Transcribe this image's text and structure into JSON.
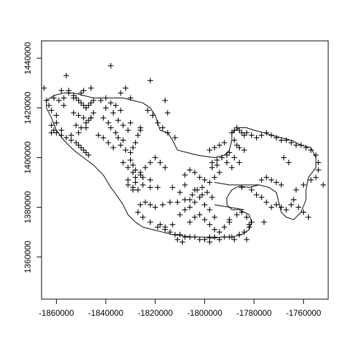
{
  "chart_data": {
    "type": "scatter",
    "title": "",
    "xlabel": "",
    "ylabel": "",
    "xlim": [
      -1866000,
      -1750000
    ],
    "ylim": [
      1343000,
      1447000
    ],
    "x_ticks": [
      -1860000,
      -1840000,
      -1820000,
      -1800000,
      -1780000,
      -1760000
    ],
    "x_tick_labels": [
      "-1860000",
      "-1840000",
      "-1820000",
      "-1800000",
      "-1780000",
      "-1760000"
    ],
    "y_ticks": [
      1360000,
      1380000,
      1400000,
      1420000,
      1440000
    ],
    "y_tick_labels": [
      "1360000",
      "1380000",
      "1400000",
      "1420000",
      "1440000"
    ],
    "marker": "plus",
    "grid": false,
    "legend": "none",
    "boundary": [
      [
        -1864000,
        1423000
      ],
      [
        -1861000,
        1425000
      ],
      [
        -1857000,
        1426000
      ],
      [
        -1853000,
        1426000
      ],
      [
        -1849000,
        1425000
      ],
      [
        -1845000,
        1424000
      ],
      [
        -1841000,
        1424000
      ],
      [
        -1837000,
        1424000
      ],
      [
        -1833000,
        1424000
      ],
      [
        -1829000,
        1423000
      ],
      [
        -1825000,
        1422000
      ],
      [
        -1822000,
        1420000
      ],
      [
        -1820000,
        1417000
      ],
      [
        -1819000,
        1414000
      ],
      [
        -1818000,
        1411000
      ],
      [
        -1815000,
        1410000
      ],
      [
        -1813000,
        1407000
      ],
      [
        -1811000,
        1403000
      ],
      [
        -1807000,
        1402000
      ],
      [
        -1803000,
        1401000
      ],
      [
        -1800000,
        1400500
      ],
      [
        -1796000,
        1400000
      ],
      [
        -1792000,
        1401000
      ],
      [
        -1790000,
        1403000
      ],
      [
        -1789000,
        1407000
      ],
      [
        -1789000,
        1410000
      ],
      [
        -1786000,
        1412000
      ],
      [
        -1783000,
        1412000
      ],
      [
        -1780000,
        1411000
      ],
      [
        -1776000,
        1410000
      ],
      [
        -1773000,
        1409000
      ],
      [
        -1769000,
        1408000
      ],
      [
        -1765000,
        1407000
      ],
      [
        -1761000,
        1405000
      ],
      [
        -1757000,
        1404000
      ],
      [
        -1755000,
        1400000
      ],
      [
        -1755000,
        1396000
      ],
      [
        -1758000,
        1392000
      ],
      [
        -1759000,
        1387000
      ],
      [
        -1759000,
        1383000
      ],
      [
        -1761000,
        1378000
      ],
      [
        -1764000,
        1375000
      ],
      [
        -1767000,
        1376000
      ],
      [
        -1769000,
        1378000
      ],
      [
        -1770000,
        1382000
      ],
      [
        -1771000,
        1386000
      ],
      [
        -1774000,
        1388000
      ],
      [
        -1778000,
        1389000
      ],
      [
        -1782000,
        1388000
      ],
      [
        -1786000,
        1388500
      ],
      [
        -1789000,
        1387000
      ],
      [
        -1791000,
        1384000
      ],
      [
        -1791000,
        1381000
      ],
      [
        -1789000,
        1379000
      ],
      [
        -1786000,
        1379000
      ],
      [
        -1784000,
        1378000
      ],
      [
        -1782000,
        1377000
      ],
      [
        -1781000,
        1374000
      ],
      [
        -1782000,
        1371000
      ],
      [
        -1785000,
        1369000
      ],
      [
        -1789000,
        1368000
      ],
      [
        -1793000,
        1368000
      ],
      [
        -1797000,
        1367500
      ],
      [
        -1801000,
        1368000
      ],
      [
        -1805000,
        1368000
      ],
      [
        -1809000,
        1368500
      ],
      [
        -1813000,
        1369000
      ],
      [
        -1817000,
        1370000
      ],
      [
        -1821000,
        1371000
      ],
      [
        -1825000,
        1372000
      ],
      [
        -1828000,
        1374000
      ],
      [
        -1831000,
        1377000
      ],
      [
        -1833000,
        1381000
      ],
      [
        -1835000,
        1384000
      ],
      [
        -1838000,
        1388000
      ],
      [
        -1841000,
        1393000
      ],
      [
        -1845000,
        1397000
      ],
      [
        -1849000,
        1400000
      ],
      [
        -1853000,
        1403000
      ],
      [
        -1857000,
        1407000
      ],
      [
        -1860000,
        1411000
      ],
      [
        -1862000,
        1416000
      ],
      [
        -1864000,
        1420000
      ],
      [
        -1864000,
        1423000
      ]
    ],
    "inner_lines": [
      [
        [
          -1796000,
          1390000
        ],
        [
          -1790000,
          1389000
        ],
        [
          -1784000,
          1389000
        ],
        [
          -1778000,
          1389000
        ]
      ],
      [
        [
          -1796000,
          1381000
        ],
        [
          -1790000,
          1380000
        ],
        [
          -1784000,
          1379000
        ]
      ]
    ],
    "series": [
      {
        "x": [
          -1865000,
          -1861000,
          -1859000,
          -1857000,
          -1856000,
          -1858000,
          -1855000,
          -1853000,
          -1852000,
          -1851000,
          -1850000,
          -1849000,
          -1848000,
          -1847000,
          -1846000,
          -1845000,
          -1853000,
          -1851000,
          -1849000,
          -1847000,
          -1852000,
          -1850000,
          -1848000,
          -1846000,
          -1845000,
          -1860000,
          -1861000,
          -1862000,
          -1860000,
          -1858000,
          -1856000,
          -1854000,
          -1852000,
          -1851000,
          -1850000,
          -1849000,
          -1848000,
          -1847000,
          -1855000,
          -1849000,
          -1846000,
          -1838000,
          -1837000,
          -1840000,
          -1841000,
          -1839000,
          -1838000,
          -1836000,
          -1835000,
          -1833000,
          -1834000,
          -1836000,
          -1838000,
          -1840000,
          -1842000,
          -1841000,
          -1839000,
          -1837000,
          -1834000,
          -1832000,
          -1830000,
          -1829000,
          -1828000,
          -1827000,
          -1826000,
          -1830000,
          -1831000,
          -1833000,
          -1835000,
          -1830000,
          -1829000,
          -1828000,
          -1826000,
          -1825000,
          -1828000,
          -1829000,
          -1827000,
          -1825000,
          -1822000,
          -1822000,
          -1826000,
          -1823000,
          -1821000,
          -1819000,
          -1817000,
          -1815000,
          -1812000,
          -1830000,
          -1832000,
          -1834000,
          -1833000,
          -1831000,
          -1829000,
          -1831000,
          -1828000,
          -1826000,
          -1824000,
          -1822000,
          -1820000,
          -1818000,
          -1816000,
          -1816000,
          -1815000,
          -1826000,
          -1824000,
          -1822000,
          -1820000,
          -1817000,
          -1814000,
          -1827000,
          -1825000,
          -1822000,
          -1819000,
          -1816000,
          -1814000,
          -1812000,
          -1810000,
          -1808000,
          -1806000,
          -1804000,
          -1802000,
          -1800000,
          -1798000,
          -1796000,
          -1794000,
          -1792000,
          -1790000,
          -1788000,
          -1786000,
          -1784000,
          -1782000,
          -1781000,
          -1783000,
          -1785000,
          -1787000,
          -1790000,
          -1808000,
          -1805000,
          -1803000,
          -1801000,
          -1799000,
          -1797000,
          -1808000,
          -1806000,
          -1804000,
          -1802000,
          -1800000,
          -1798000,
          -1796000,
          -1794000,
          -1810000,
          -1808000,
          -1806000,
          -1804000,
          -1802000,
          -1800000,
          -1798000,
          -1806000,
          -1804000,
          -1802000,
          -1800000,
          -1798000,
          -1796000,
          -1794000,
          -1792000,
          -1790000,
          -1797000,
          -1795000,
          -1793000,
          -1791000,
          -1789000,
          -1798000,
          -1796000,
          -1794000,
          -1792000,
          -1790000,
          -1788000,
          -1786000,
          -1797000,
          -1795000,
          -1789000,
          -1788000,
          -1787000,
          -1786000,
          -1785000,
          -1784000,
          -1783000,
          -1781000,
          -1779000,
          -1777000,
          -1775000,
          -1773000,
          -1771000,
          -1769000,
          -1767000,
          -1765000,
          -1763000,
          -1761000,
          -1759000,
          -1757000,
          -1755000,
          -1754000,
          -1754000,
          -1755000,
          -1752000,
          -1757000,
          -1760000,
          -1763000,
          -1764000,
          -1762000,
          -1760000,
          -1758000,
          -1773000,
          -1771000,
          -1769000,
          -1775000,
          -1777000,
          -1768000,
          -1766000,
          -1787000,
          -1786000,
          -1784000,
          -1788000,
          -1791000,
          -1813000,
          -1810000,
          -1806000,
          -1796000,
          -1782000,
          -1776000,
          -1811000,
          -1819000,
          -1822000,
          -1831000,
          -1829000,
          -1850000,
          -1853000,
          -1857000,
          -1860000,
          -1862000,
          -1863000,
          -1864000,
          -1862000,
          -1858000,
          -1854000,
          -1851000,
          -1848000,
          -1846000,
          -1843000,
          -1808000,
          -1804000,
          -1801000,
          -1813000,
          -1816000,
          -1818000,
          -1809000,
          -1811000,
          -1798000,
          -1783000,
          -1789000,
          -1785000,
          -1781000,
          -1779000,
          -1777000,
          -1775000,
          -1773000,
          -1771000,
          -1769000,
          -1767000,
          -1765000
        ],
        "y": [
          1428000,
          1424000,
          1423000,
          1424000,
          1433000,
          1427000,
          1426000,
          1425000,
          1424000,
          1423000,
          1422000,
          1421000,
          1420000,
          1421000,
          1422000,
          1423000,
          1418000,
          1417000,
          1416000,
          1415000,
          1413000,
          1412000,
          1414000,
          1416000,
          1418000,
          1414000,
          1411000,
          1413000,
          1410000,
          1409000,
          1408000,
          1407000,
          1406000,
          1405000,
          1404000,
          1403000,
          1402000,
          1401000,
          1427000,
          1427000,
          1428000,
          1437000,
          1418000,
          1420000,
          1416000,
          1414000,
          1412000,
          1410000,
          1408000,
          1407000,
          1419000,
          1421000,
          1422000,
          1424000,
          1423000,
          1408000,
          1406000,
          1404000,
          1405000,
          1403000,
          1402000,
          1404000,
          1406000,
          1409000,
          1412000,
          1414000,
          1411000,
          1413000,
          1415000,
          1399000,
          1397000,
          1395000,
          1393000,
          1392000,
          1390000,
          1388000,
          1387000,
          1389000,
          1388000,
          1431000,
          1411000,
          1419000,
          1417000,
          1414000,
          1412000,
          1410000,
          1408000,
          1424000,
          1428000,
          1426000,
          1398000,
          1396000,
          1394000,
          1391000,
          1392000,
          1394000,
          1396000,
          1398000,
          1400000,
          1398000,
          1396000,
          1423000,
          1418000,
          1381000,
          1382000,
          1381000,
          1380000,
          1381000,
          1382000,
          1378000,
          1376000,
          1374000,
          1372000,
          1371000,
          1370000,
          1369000,
          1369000,
          1368000,
          1368000,
          1368000,
          1367000,
          1367000,
          1368000,
          1368000,
          1367000,
          1368000,
          1368000,
          1367000,
          1369000,
          1370000,
          1372000,
          1374000,
          1376000,
          1378000,
          1377000,
          1375000,
          1383000,
          1385000,
          1387000,
          1388000,
          1386000,
          1384000,
          1393000,
          1395000,
          1394000,
          1392000,
          1391000,
          1390000,
          1392000,
          1394000,
          1377000,
          1379000,
          1380000,
          1382000,
          1384000,
          1381000,
          1379000,
          1374000,
          1376000,
          1377000,
          1375000,
          1373000,
          1371000,
          1370000,
          1372000,
          1374000,
          1398000,
          1399000,
          1400000,
          1398000,
          1396000,
          1403000,
          1404000,
          1405000,
          1406000,
          1402000,
          1400000,
          1398000,
          1396000,
          1397000,
          1410000,
          1411000,
          1412000,
          1411000,
          1410000,
          1409000,
          1410000,
          1409000,
          1408000,
          1409000,
          1410000,
          1409000,
          1408000,
          1407000,
          1407000,
          1406000,
          1405000,
          1405000,
          1404000,
          1403000,
          1401000,
          1398000,
          1395000,
          1392000,
          1389000,
          1391000,
          1389000,
          1387000,
          1383000,
          1380000,
          1378000,
          1376000,
          1391000,
          1390000,
          1389000,
          1392000,
          1391000,
          1400000,
          1398000,
          1405000,
          1404000,
          1403000,
          1407000,
          1401000,
          1388000,
          1386000,
          1383000,
          1376000,
          1373000,
          1374000,
          1382000,
          1388000,
          1391000,
          1389000,
          1387000,
          1426000,
          1424000,
          1421000,
          1417000,
          1419000,
          1421000,
          1423000,
          1410000,
          1411000,
          1409000,
          1410000,
          1412000,
          1416000,
          1409000,
          1389000,
          1387000,
          1385000,
          1373000,
          1372000,
          1373000,
          1366000,
          1367000,
          1366000,
          1367000,
          1368000,
          1388000,
          1387000,
          1385000,
          1384000,
          1382000,
          1380000,
          1381000,
          1380000,
          1379000,
          1381000
        ]
      }
    ]
  }
}
